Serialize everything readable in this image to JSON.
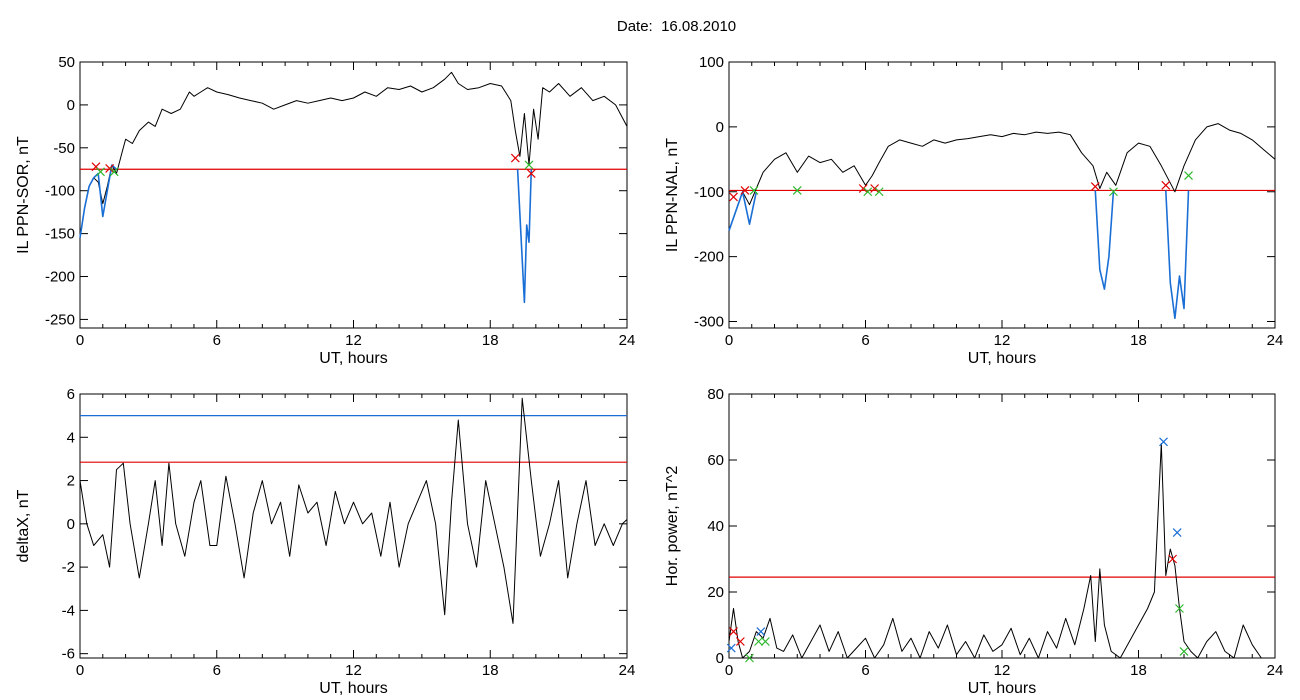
{
  "header": {
    "prefix": "Date:",
    "date": "16.08.2010"
  },
  "colors": {
    "data": "#000000",
    "threshold_red": "#e00000",
    "threshold_blue": "#1a6fd6",
    "marker_green": "#2db82d"
  },
  "chart_data": [
    {
      "type": "line",
      "xlabel": "UT, hours",
      "ylabel": "IL PPN-SOR, nT",
      "xlim": [
        0,
        24
      ],
      "ylim": [
        -260,
        50
      ],
      "xticks": [
        "0",
        "6",
        "12",
        "18",
        "24"
      ],
      "yticks": [
        "50",
        "0",
        "-50",
        "-100",
        "-150",
        "-200",
        "-250"
      ],
      "ytick_values": [
        50,
        0,
        -50,
        -100,
        -150,
        -200,
        -250
      ],
      "threshold": -75,
      "series": [
        {
          "color": "#000000",
          "x": [
            0,
            0.2,
            0.4,
            0.6,
            0.8,
            1.0,
            1.2,
            1.4,
            1.6,
            1.8,
            2.0,
            2.3,
            2.6,
            3.0,
            3.3,
            3.6,
            4.0,
            4.4,
            4.8,
            5.0,
            5.3,
            5.6,
            6.0,
            6.5,
            7.0,
            7.5,
            8.0,
            8.5,
            9.0,
            9.5,
            10.0,
            10.5,
            11.0,
            11.5,
            12.0,
            12.5,
            13.0,
            13.5,
            14.0,
            14.5,
            15.0,
            15.5,
            16.0,
            16.3,
            16.6,
            17.0,
            17.5,
            18.0,
            18.5,
            18.9,
            19.1,
            19.3,
            19.5,
            19.7,
            19.9,
            20.1,
            20.3,
            20.6,
            21.0,
            21.5,
            22.0,
            22.5,
            23.0,
            23.5,
            24.0
          ],
          "y": [
            -155,
            -120,
            -95,
            -85,
            -90,
            -115,
            -95,
            -70,
            -80,
            -60,
            -40,
            -45,
            -30,
            -20,
            -25,
            -5,
            -10,
            -5,
            15,
            10,
            15,
            20,
            15,
            12,
            8,
            5,
            2,
            -5,
            0,
            5,
            2,
            5,
            8,
            5,
            8,
            15,
            10,
            20,
            18,
            22,
            15,
            20,
            30,
            38,
            25,
            18,
            20,
            25,
            22,
            5,
            -30,
            -60,
            -10,
            -70,
            -5,
            -40,
            20,
            15,
            25,
            10,
            20,
            5,
            10,
            0,
            -25
          ]
        },
        {
          "color": "#1a6fd6",
          "x": [
            0,
            0.2,
            0.4,
            0.6,
            0.8,
            1.0,
            1.2,
            1.4,
            1.6
          ],
          "y": [
            -155,
            -120,
            -95,
            -85,
            -80,
            -130,
            -100,
            -70,
            -75
          ]
        },
        {
          "color": "#1a6fd6",
          "x": [
            19.2,
            19.4,
            19.5,
            19.6,
            19.7,
            19.8
          ],
          "y": [
            -75,
            -180,
            -230,
            -140,
            -160,
            -75
          ]
        }
      ],
      "markers": [
        {
          "x": 0.7,
          "y": -72,
          "color": "#e00000"
        },
        {
          "x": 0.9,
          "y": -78,
          "color": "#2db82d"
        },
        {
          "x": 1.3,
          "y": -74,
          "color": "#e00000"
        },
        {
          "x": 1.5,
          "y": -78,
          "color": "#2db82d"
        },
        {
          "x": 19.1,
          "y": -62,
          "color": "#e00000"
        },
        {
          "x": 19.7,
          "y": -70,
          "color": "#2db82d"
        },
        {
          "x": 19.8,
          "y": -80,
          "color": "#e00000"
        }
      ]
    },
    {
      "type": "line",
      "xlabel": "UT, hours",
      "ylabel": "IL PPN-NAL, nT",
      "xlim": [
        0,
        24
      ],
      "ylim": [
        -310,
        100
      ],
      "xticks": [
        "0",
        "6",
        "12",
        "18",
        "24"
      ],
      "yticks": [
        "100",
        "0",
        "-100",
        "-200",
        "-300"
      ],
      "ytick_values": [
        100,
        0,
        -100,
        -200,
        -300
      ],
      "threshold": -98,
      "series": [
        {
          "color": "#000000",
          "x": [
            0,
            0.3,
            0.6,
            0.9,
            1.2,
            1.5,
            2.0,
            2.5,
            3.0,
            3.5,
            4.0,
            4.5,
            5.0,
            5.5,
            6.0,
            6.3,
            6.6,
            7.0,
            7.5,
            8.0,
            8.5,
            9.0,
            9.5,
            10.0,
            10.5,
            11.0,
            11.5,
            12.0,
            12.5,
            13.0,
            13.5,
            14.0,
            14.5,
            15.0,
            15.5,
            16.0,
            16.3,
            16.6,
            17.0,
            17.5,
            18.0,
            18.5,
            19.0,
            19.3,
            19.6,
            20.0,
            20.5,
            21.0,
            21.5,
            22.0,
            22.5,
            23.0,
            23.5,
            24.0
          ],
          "y": [
            -160,
            -130,
            -100,
            -120,
            -95,
            -70,
            -50,
            -40,
            -70,
            -45,
            -55,
            -50,
            -70,
            -60,
            -90,
            -75,
            -55,
            -30,
            -20,
            -25,
            -30,
            -20,
            -25,
            -20,
            -18,
            -15,
            -12,
            -15,
            -10,
            -12,
            -8,
            -10,
            -8,
            -12,
            -40,
            -60,
            -95,
            -70,
            -90,
            -40,
            -25,
            -30,
            -60,
            -80,
            -100,
            -60,
            -20,
            0,
            5,
            -5,
            -10,
            -20,
            -35,
            -50
          ]
        },
        {
          "color": "#1a6fd6",
          "x": [
            0,
            0.3,
            0.6,
            0.9,
            1.2
          ],
          "y": [
            -160,
            -130,
            -100,
            -150,
            -100
          ]
        },
        {
          "color": "#1a6fd6",
          "x": [
            16.1,
            16.3,
            16.5,
            16.7,
            16.9
          ],
          "y": [
            -98,
            -220,
            -250,
            -200,
            -98
          ]
        },
        {
          "color": "#1a6fd6",
          "x": [
            19.2,
            19.4,
            19.6,
            19.8,
            20.0,
            20.2
          ],
          "y": [
            -98,
            -240,
            -295,
            -230,
            -280,
            -98
          ]
        }
      ],
      "markers": [
        {
          "x": 0.2,
          "y": -108,
          "color": "#e00000"
        },
        {
          "x": 0.7,
          "y": -98,
          "color": "#e00000"
        },
        {
          "x": 1.1,
          "y": -98,
          "color": "#2db82d"
        },
        {
          "x": 3.0,
          "y": -98,
          "color": "#2db82d"
        },
        {
          "x": 5.9,
          "y": -95,
          "color": "#e00000"
        },
        {
          "x": 6.1,
          "y": -100,
          "color": "#2db82d"
        },
        {
          "x": 6.4,
          "y": -95,
          "color": "#e00000"
        },
        {
          "x": 6.6,
          "y": -100,
          "color": "#2db82d"
        },
        {
          "x": 16.1,
          "y": -92,
          "color": "#e00000"
        },
        {
          "x": 16.9,
          "y": -100,
          "color": "#2db82d"
        },
        {
          "x": 19.2,
          "y": -90,
          "color": "#e00000"
        },
        {
          "x": 20.2,
          "y": -75,
          "color": "#2db82d"
        }
      ]
    },
    {
      "type": "line",
      "xlabel": "UT, hours",
      "ylabel": "deltaX, nT",
      "xlim": [
        0,
        24
      ],
      "ylim": [
        -6.2,
        6.0
      ],
      "xticks": [
        "0",
        "6",
        "12",
        "18",
        "24"
      ],
      "yticks": [
        "6",
        "4",
        "2",
        "0",
        "-2",
        "-4",
        "-6"
      ],
      "ytick_values": [
        6,
        4,
        2,
        0,
        -2,
        -4,
        -6
      ],
      "thresholds": [
        {
          "value": 5.0,
          "color": "#1a6fd6"
        },
        {
          "value": 2.85,
          "color": "#e00000"
        }
      ],
      "series": [
        {
          "color": "#000000",
          "x": [
            0,
            0.3,
            0.6,
            1.0,
            1.3,
            1.6,
            1.9,
            2.2,
            2.6,
            3.0,
            3.3,
            3.6,
            3.9,
            4.2,
            4.6,
            5.0,
            5.3,
            5.7,
            6.0,
            6.4,
            6.8,
            7.2,
            7.6,
            8.0,
            8.4,
            8.8,
            9.2,
            9.6,
            10.0,
            10.4,
            10.8,
            11.2,
            11.6,
            12.0,
            12.4,
            12.8,
            13.2,
            13.6,
            14.0,
            14.4,
            14.8,
            15.2,
            15.6,
            16.0,
            16.3,
            16.6,
            17.0,
            17.4,
            17.8,
            18.2,
            18.6,
            19.0,
            19.4,
            19.8,
            20.2,
            20.6,
            21.0,
            21.4,
            21.8,
            22.2,
            22.6,
            23.0,
            23.4,
            23.8,
            24.0
          ],
          "y": [
            2.0,
            0.0,
            -1.0,
            -0.5,
            -2.0,
            2.5,
            2.8,
            0.0,
            -2.5,
            0.0,
            2.0,
            -1.0,
            2.8,
            0.0,
            -1.5,
            1.0,
            2.0,
            -1.0,
            -1.0,
            2.2,
            0.0,
            -2.5,
            0.5,
            2.0,
            0.0,
            1.0,
            -1.5,
            1.8,
            0.5,
            1.0,
            -1.0,
            1.5,
            0.0,
            1.0,
            0.0,
            0.5,
            -1.5,
            1.0,
            -2.0,
            0.0,
            1.0,
            2.0,
            0.0,
            -4.2,
            1.0,
            4.8,
            0.0,
            -2.0,
            2.0,
            0.0,
            -2.0,
            -4.6,
            5.8,
            2.0,
            -1.5,
            0.0,
            2.0,
            -2.5,
            0.0,
            2.0,
            -1.0,
            0.0,
            -1.0,
            0.0,
            0.2
          ]
        }
      ]
    },
    {
      "type": "line",
      "xlabel": "UT, hours",
      "ylabel": "Hor. power, nT^2",
      "xlim": [
        0,
        24
      ],
      "ylim": [
        0,
        80
      ],
      "xticks": [
        "0",
        "6",
        "12",
        "18",
        "24"
      ],
      "yticks": [
        "80",
        "60",
        "40",
        "20",
        "0"
      ],
      "ytick_values": [
        80,
        60,
        40,
        20,
        0
      ],
      "threshold": 24.5,
      "series": [
        {
          "color": "#000000",
          "x": [
            0,
            0.2,
            0.4,
            0.6,
            0.9,
            1.2,
            1.5,
            1.8,
            2.1,
            2.4,
            2.8,
            3.2,
            3.6,
            4.0,
            4.4,
            4.8,
            5.2,
            5.6,
            6.0,
            6.4,
            6.8,
            7.2,
            7.6,
            8.0,
            8.4,
            8.8,
            9.2,
            9.6,
            10.0,
            10.4,
            10.8,
            11.2,
            11.6,
            12.0,
            12.4,
            12.8,
            13.2,
            13.6,
            14.0,
            14.4,
            14.8,
            15.2,
            15.6,
            15.9,
            16.1,
            16.3,
            16.5,
            16.8,
            17.2,
            17.6,
            18.0,
            18.4,
            18.7,
            19.0,
            19.2,
            19.4,
            19.6,
            19.8,
            20.0,
            20.3,
            20.6,
            21.0,
            21.4,
            21.8,
            22.2,
            22.6,
            23.0,
            23.4,
            24.0
          ],
          "y": [
            5,
            15,
            5,
            0,
            2,
            8,
            6,
            12,
            3,
            2,
            7,
            0,
            5,
            10,
            2,
            8,
            0,
            3,
            6,
            0,
            4,
            12,
            2,
            6,
            0,
            8,
            3,
            10,
            1,
            5,
            0,
            7,
            2,
            4,
            9,
            1,
            6,
            0,
            8,
            3,
            12,
            4,
            15,
            25,
            5,
            27,
            10,
            2,
            0,
            5,
            10,
            15,
            20,
            65,
            25,
            33,
            28,
            15,
            5,
            2,
            0,
            5,
            8,
            2,
            0,
            10,
            4,
            0,
            0
          ]
        }
      ],
      "markers": [
        {
          "x": 0.1,
          "y": 3,
          "color": "#1a6fd6"
        },
        {
          "x": 0.2,
          "y": 8,
          "color": "#e00000"
        },
        {
          "x": 0.5,
          "y": 5,
          "color": "#e00000"
        },
        {
          "x": 0.9,
          "y": 0,
          "color": "#2db82d"
        },
        {
          "x": 1.3,
          "y": 5,
          "color": "#2db82d"
        },
        {
          "x": 1.4,
          "y": 8,
          "color": "#1a6fd6"
        },
        {
          "x": 1.6,
          "y": 5,
          "color": "#2db82d"
        },
        {
          "x": 19.1,
          "y": 65.5,
          "color": "#1a6fd6"
        },
        {
          "x": 19.5,
          "y": 30,
          "color": "#e00000"
        },
        {
          "x": 19.7,
          "y": 38,
          "color": "#1a6fd6"
        },
        {
          "x": 19.8,
          "y": 15,
          "color": "#2db82d"
        },
        {
          "x": 20.0,
          "y": 2,
          "color": "#2db82d"
        }
      ]
    }
  ]
}
